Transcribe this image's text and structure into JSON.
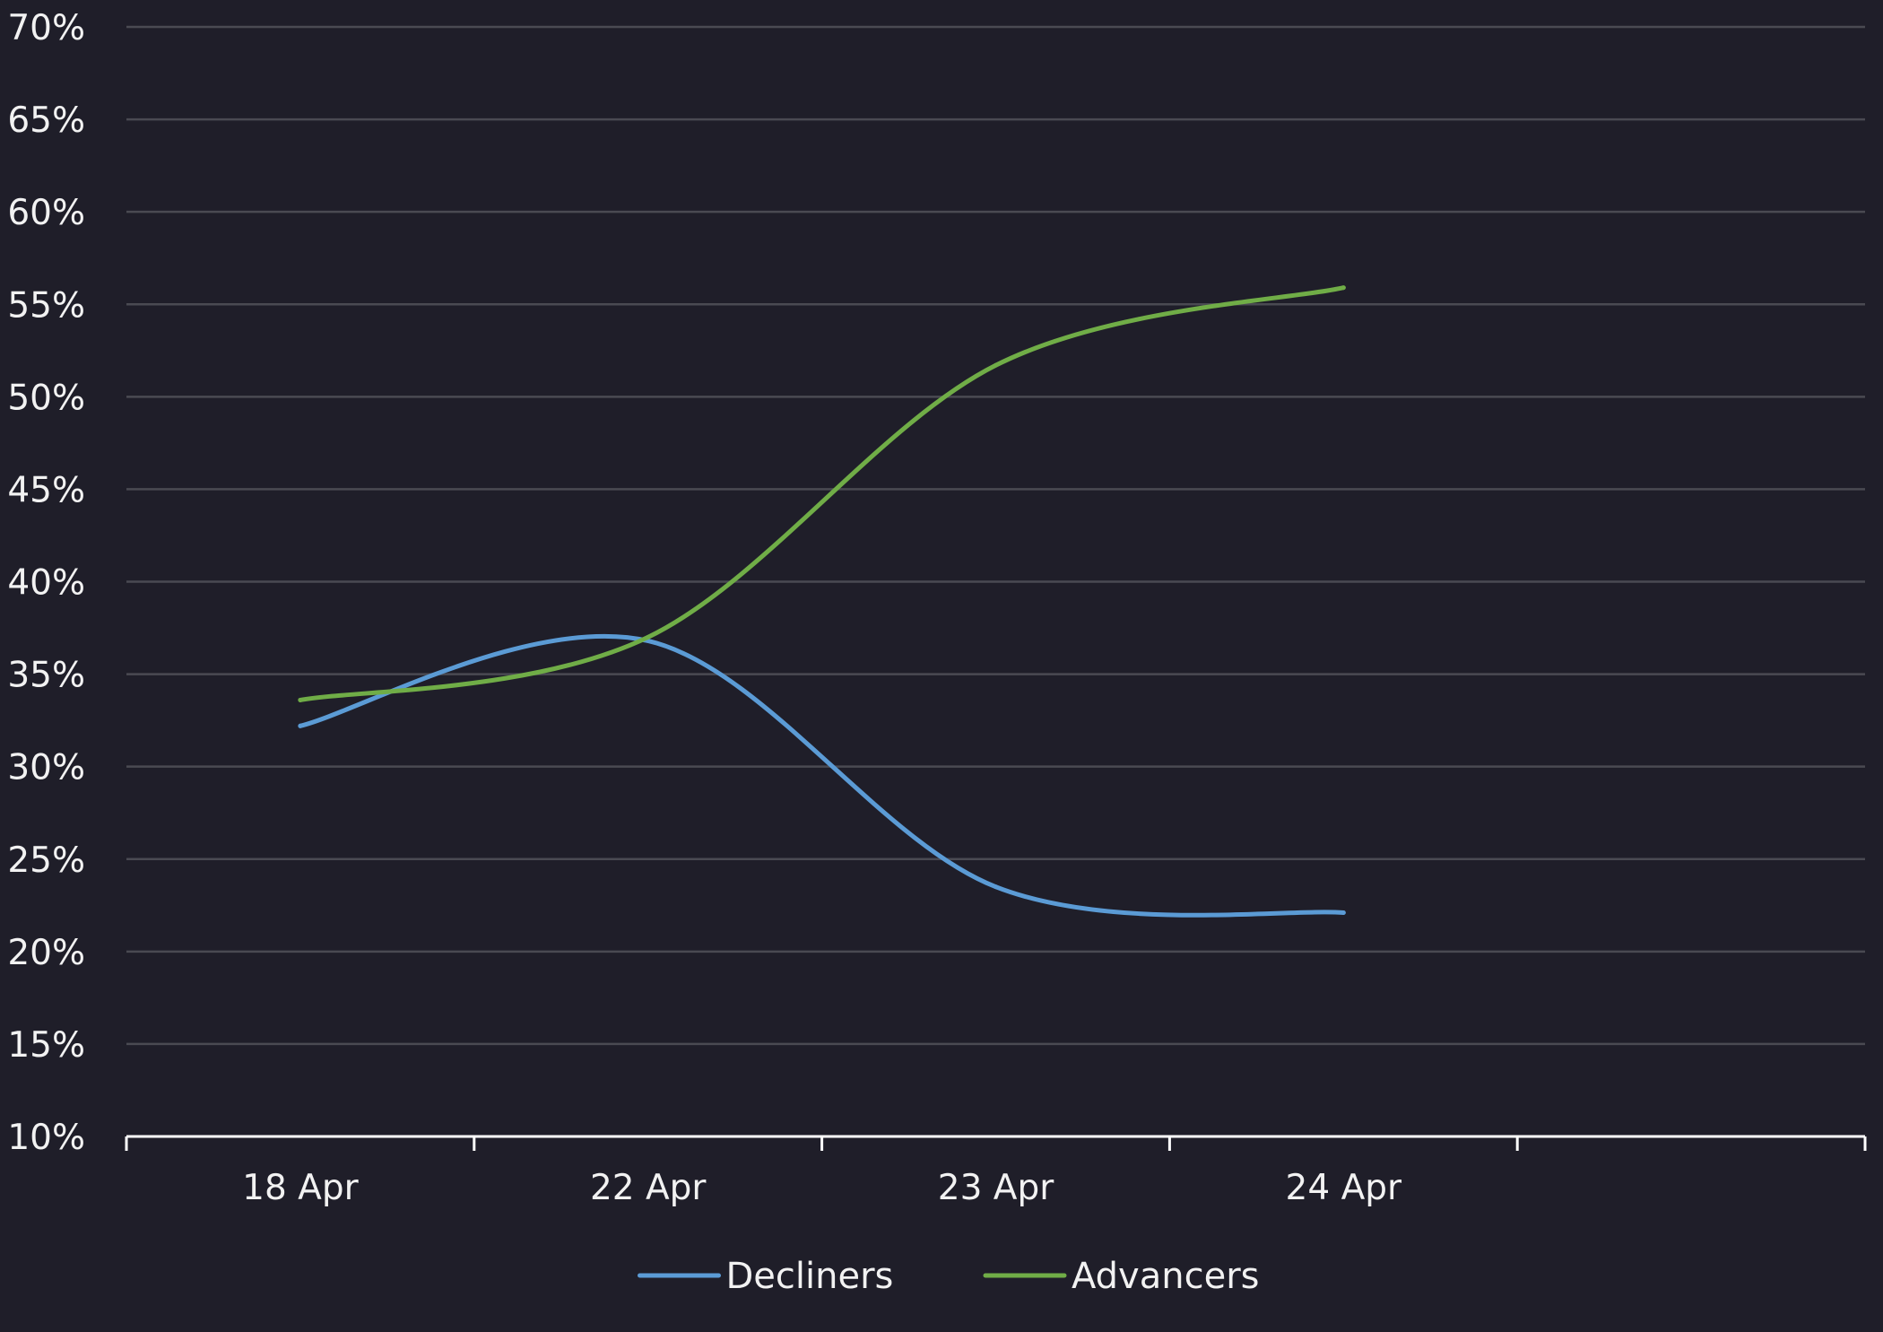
{
  "chart_data": {
    "type": "line",
    "title": "",
    "xlabel": "",
    "ylabel": "",
    "categories": [
      "18 Apr",
      "22 Apr",
      "23 Apr",
      "24 Apr"
    ],
    "x_slots": 5,
    "y_unit": "%",
    "ylim": [
      10,
      70
    ],
    "y_ticks": [
      10,
      15,
      20,
      25,
      30,
      35,
      40,
      45,
      50,
      55,
      60,
      65,
      70
    ],
    "y_tick_labels": [
      "10%",
      "15%",
      "20%",
      "25%",
      "30%",
      "35%",
      "40%",
      "45%",
      "50%",
      "55%",
      "60%",
      "65%",
      "70%"
    ],
    "grid": true,
    "smooth": true,
    "legend_position": "bottom",
    "series": [
      {
        "name": "Decliners",
        "color": "#5b9bd5",
        "values": [
          32.2,
          36.8,
          23.5,
          22.1
        ]
      },
      {
        "name": "Advancers",
        "color": "#70ad47",
        "values": [
          33.6,
          37.0,
          51.7,
          55.9
        ]
      }
    ]
  },
  "colors": {
    "background": "#1f1e29",
    "grid": "#4a4a52",
    "axis": "#ffffff",
    "text": "#f2f2f2"
  }
}
